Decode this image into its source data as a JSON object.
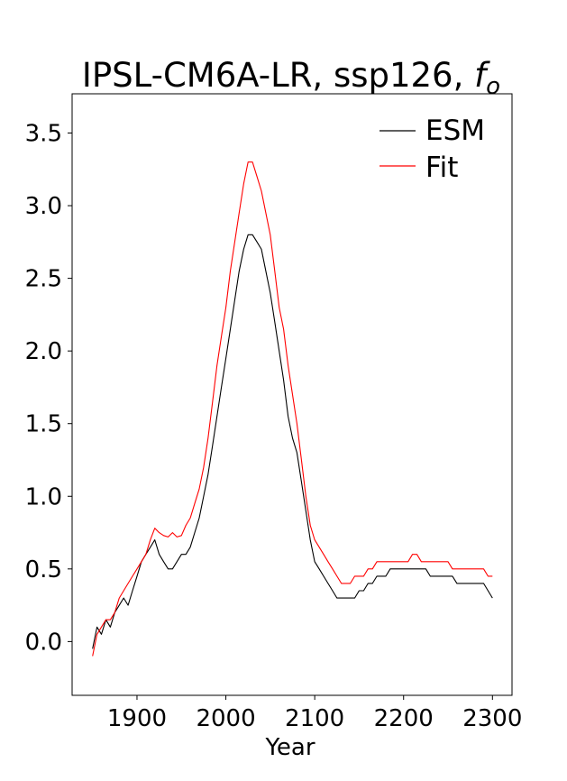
{
  "chart_data": {
    "type": "line",
    "title": "IPSL-CM6A-LR, ssp126, ",
    "title_math": "f",
    "title_math_sub": "o",
    "xlabel": "Year",
    "ylabel": "",
    "xlim": [
      1827,
      2322
    ],
    "ylim": [
      -0.37,
      3.77
    ],
    "xticks": [
      1900,
      2000,
      2100,
      2200,
      2300
    ],
    "yticks": [
      0.0,
      0.5,
      1.0,
      1.5,
      2.0,
      2.5,
      3.0,
      3.5
    ],
    "ytick_labels": [
      "0.0",
      "0.5",
      "1.0",
      "1.5",
      "2.0",
      "2.5",
      "3.0",
      "3.5"
    ],
    "xtick_labels": [
      "1900",
      "2000",
      "2100",
      "2200",
      "2300"
    ],
    "grid": false,
    "legend_position": "top-right",
    "series": [
      {
        "name": "ESM",
        "color": "#000000",
        "x": [
          1850,
          1855,
          1860,
          1865,
          1870,
          1875,
          1880,
          1885,
          1890,
          1895,
          1900,
          1905,
          1910,
          1915,
          1920,
          1925,
          1930,
          1935,
          1940,
          1945,
          1950,
          1955,
          1960,
          1965,
          1970,
          1975,
          1980,
          1985,
          1990,
          1995,
          2000,
          2005,
          2010,
          2015,
          2020,
          2025,
          2030,
          2035,
          2040,
          2045,
          2050,
          2055,
          2060,
          2065,
          2070,
          2075,
          2080,
          2085,
          2090,
          2095,
          2100,
          2105,
          2110,
          2115,
          2120,
          2125,
          2130,
          2135,
          2140,
          2145,
          2150,
          2155,
          2160,
          2165,
          2170,
          2175,
          2180,
          2185,
          2190,
          2195,
          2200,
          2205,
          2210,
          2215,
          2220,
          2225,
          2230,
          2235,
          2240,
          2245,
          2250,
          2255,
          2260,
          2265,
          2270,
          2275,
          2280,
          2285,
          2290,
          2295,
          2300
        ],
        "values": [
          -0.05,
          0.1,
          0.05,
          0.15,
          0.1,
          0.2,
          0.25,
          0.3,
          0.25,
          0.35,
          0.45,
          0.55,
          0.6,
          0.65,
          0.7,
          0.6,
          0.55,
          0.5,
          0.5,
          0.55,
          0.6,
          0.6,
          0.65,
          0.75,
          0.85,
          1.0,
          1.15,
          1.35,
          1.55,
          1.75,
          1.95,
          2.15,
          2.35,
          2.55,
          2.7,
          2.8,
          2.8,
          2.75,
          2.7,
          2.55,
          2.4,
          2.2,
          2.0,
          1.8,
          1.55,
          1.4,
          1.3,
          1.1,
          0.9,
          0.7,
          0.55,
          0.5,
          0.45,
          0.4,
          0.35,
          0.3,
          0.3,
          0.3,
          0.3,
          0.3,
          0.35,
          0.35,
          0.4,
          0.4,
          0.45,
          0.45,
          0.45,
          0.5,
          0.5,
          0.5,
          0.5,
          0.5,
          0.5,
          0.5,
          0.5,
          0.5,
          0.45,
          0.45,
          0.45,
          0.45,
          0.45,
          0.45,
          0.4,
          0.4,
          0.4,
          0.4,
          0.4,
          0.4,
          0.4,
          0.35,
          0.3
        ]
      },
      {
        "name": "Fit",
        "color": "#ff0000",
        "x": [
          1850,
          1855,
          1860,
          1865,
          1870,
          1875,
          1880,
          1885,
          1890,
          1895,
          1900,
          1905,
          1910,
          1915,
          1920,
          1925,
          1930,
          1935,
          1940,
          1945,
          1950,
          1955,
          1960,
          1965,
          1970,
          1975,
          1980,
          1985,
          1990,
          1995,
          2000,
          2005,
          2010,
          2015,
          2020,
          2025,
          2030,
          2035,
          2040,
          2045,
          2050,
          2055,
          2060,
          2065,
          2070,
          2075,
          2080,
          2085,
          2090,
          2095,
          2100,
          2105,
          2110,
          2115,
          2120,
          2125,
          2130,
          2135,
          2140,
          2145,
          2150,
          2155,
          2160,
          2165,
          2170,
          2175,
          2180,
          2185,
          2190,
          2195,
          2200,
          2205,
          2210,
          2215,
          2220,
          2225,
          2230,
          2235,
          2240,
          2245,
          2250,
          2255,
          2260,
          2265,
          2270,
          2275,
          2280,
          2285,
          2290,
          2295,
          2300
        ],
        "values": [
          -0.1,
          0.05,
          0.1,
          0.15,
          0.15,
          0.2,
          0.3,
          0.35,
          0.4,
          0.45,
          0.5,
          0.55,
          0.6,
          0.7,
          0.78,
          0.75,
          0.73,
          0.72,
          0.75,
          0.72,
          0.73,
          0.8,
          0.85,
          0.95,
          1.05,
          1.2,
          1.4,
          1.65,
          1.9,
          2.1,
          2.3,
          2.55,
          2.75,
          2.95,
          3.15,
          3.3,
          3.3,
          3.2,
          3.1,
          2.95,
          2.8,
          2.55,
          2.3,
          2.15,
          1.9,
          1.7,
          1.5,
          1.25,
          1.0,
          0.8,
          0.7,
          0.65,
          0.6,
          0.55,
          0.5,
          0.45,
          0.4,
          0.4,
          0.4,
          0.45,
          0.45,
          0.45,
          0.5,
          0.5,
          0.55,
          0.55,
          0.55,
          0.55,
          0.55,
          0.55,
          0.55,
          0.55,
          0.6,
          0.6,
          0.55,
          0.55,
          0.55,
          0.55,
          0.55,
          0.55,
          0.55,
          0.5,
          0.5,
          0.5,
          0.5,
          0.5,
          0.5,
          0.5,
          0.5,
          0.45,
          0.45
        ]
      }
    ]
  }
}
